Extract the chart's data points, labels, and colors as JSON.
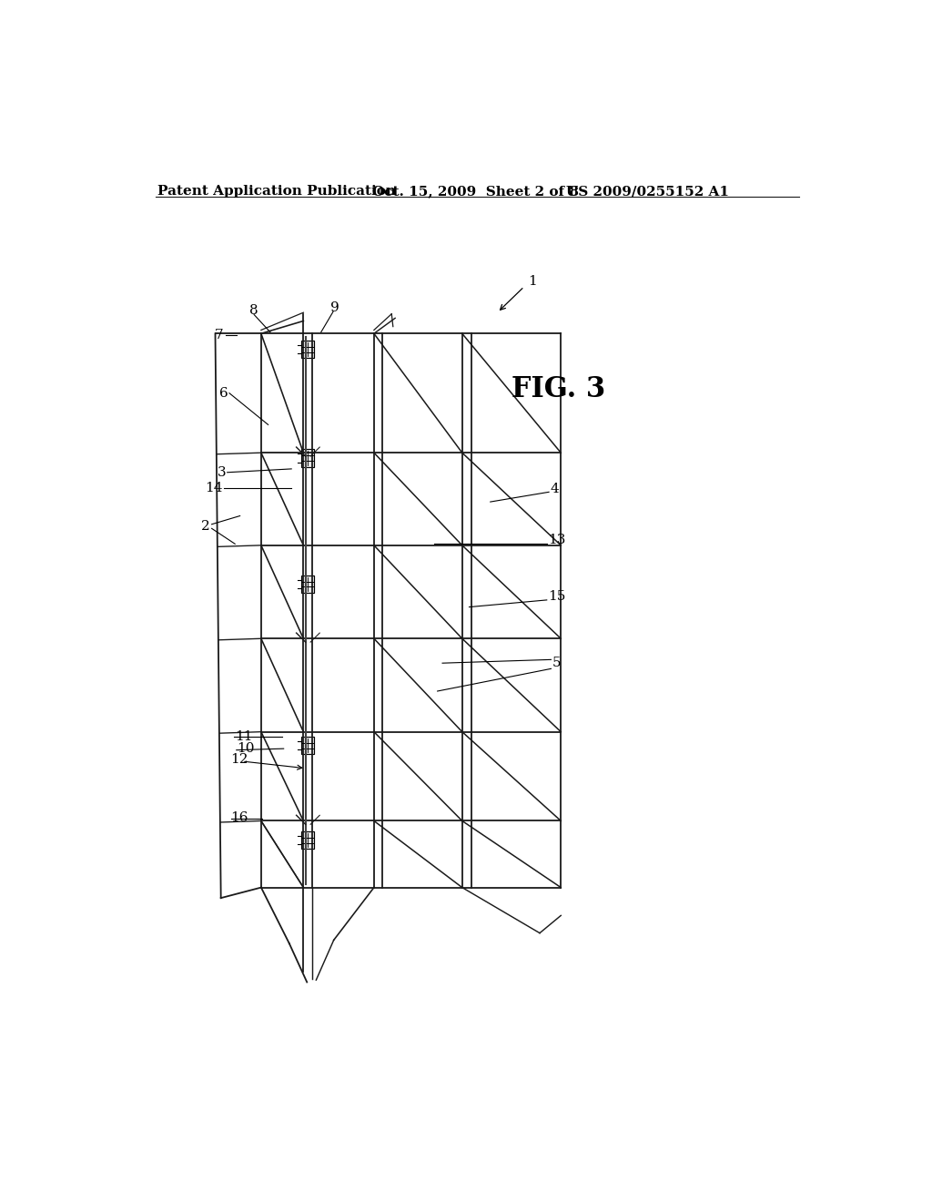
{
  "bg_color": "#ffffff",
  "header_text": "Patent Application Publication",
  "header_date": "Oct. 15, 2009  Sheet 2 of 8",
  "header_patent": "US 2009/0255152 A1",
  "fig_label": "FIG. 3",
  "title_fontsize": 11,
  "fig_label_fontsize": 22,
  "ref_fontsize": 11,
  "line_color": "#1a1a1a",
  "line_width": 1.3
}
